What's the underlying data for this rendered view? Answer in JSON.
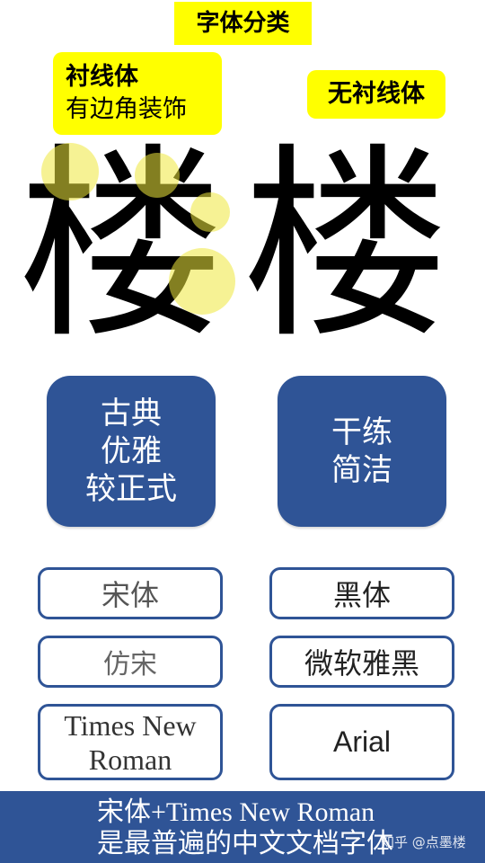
{
  "header": {
    "title": "字体分类",
    "serif_tag_line1": "衬线体",
    "serif_tag_line2": "有边角装饰",
    "sans_tag": "无衬线体"
  },
  "sample_char": {
    "serif": "楼",
    "sans": "楼"
  },
  "cards": {
    "serif": [
      "古典",
      "优雅",
      "较正式"
    ],
    "sans": [
      "干练",
      "简洁"
    ]
  },
  "fonts": {
    "serif": [
      "宋体",
      "仿宋",
      "Times New",
      "Roman"
    ],
    "sans": [
      "黑体",
      "微软雅黑",
      "Arial"
    ]
  },
  "footer": {
    "line1": "宋体+Times New Roman",
    "line2": "是最普遍的中文文档字体"
  },
  "watermark": "知乎 @点墨楼",
  "colors": {
    "highlight": "#ffff00",
    "card_blue": "#2f5496",
    "marker_yellow": "#eee83c"
  }
}
